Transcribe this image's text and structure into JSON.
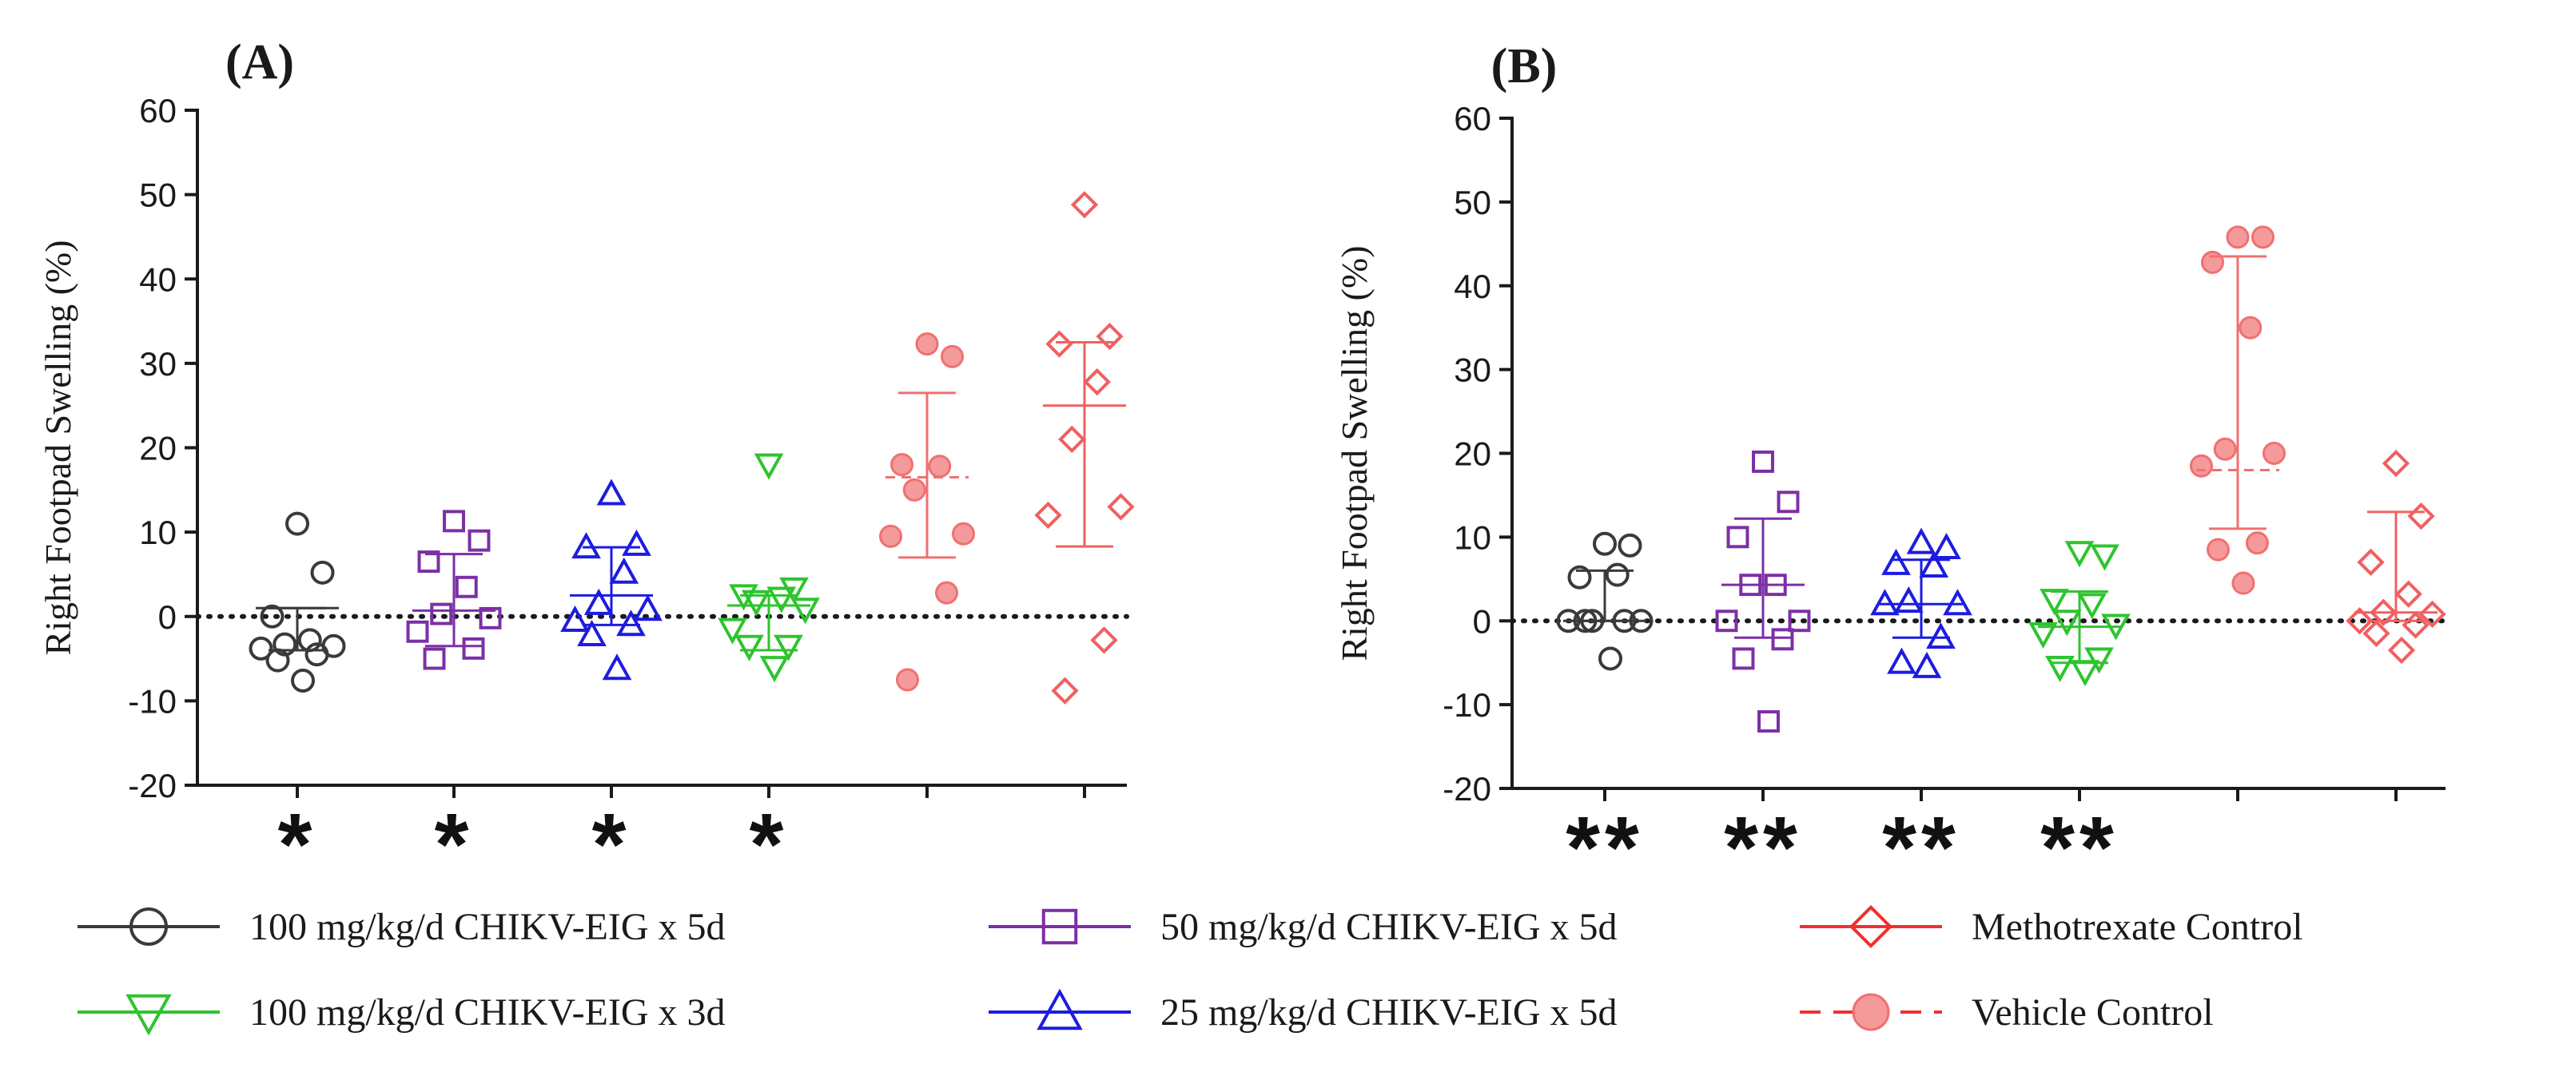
{
  "chart_data": [
    {
      "type": "scatter",
      "panel_label": "(A)",
      "ylabel": "Right Footpad Swelling (%)",
      "ylim": [
        -20,
        60
      ],
      "yticks": [
        -20,
        -10,
        0,
        10,
        20,
        30,
        40,
        50,
        60
      ],
      "reference_line": 0,
      "groups": [
        {
          "name": "100 mg/kg/d CHIKV-EIG x 5d",
          "marker": "circle",
          "color": "#3a3a3a",
          "significance": "*",
          "mean": 1,
          "err_low": -4,
          "err_high": 1,
          "mean_style": "solid",
          "values": [
            11,
            5.2,
            0,
            -2.8,
            -3.3,
            -3.5,
            -3.8,
            -4.5,
            -5.2,
            -7.6
          ]
        },
        {
          "name": "50 mg/kg/d CHIKV-EIG x 5d",
          "marker": "square",
          "color": "#7c2fa6",
          "significance": "*",
          "mean": 0.7,
          "err_low": -3.5,
          "err_high": 7.4,
          "mean_style": "solid",
          "values": [
            11.3,
            9,
            6.5,
            3.5,
            0.3,
            -0.2,
            -1.8,
            -3.8,
            -5
          ]
        },
        {
          "name": "25 mg/kg/d CHIKV-EIG x 5d",
          "marker": "triangle-up",
          "color": "#1c1ce0",
          "significance": "*",
          "mean": 2.5,
          "err_low": -1,
          "err_high": 8.2,
          "mean_style": "solid",
          "values": [
            14.5,
            8.5,
            8.2,
            5.2,
            1.5,
            0.8,
            -0.5,
            -1,
            -2.2,
            -6.2
          ]
        },
        {
          "name": "100 mg/kg/d CHIKV-EIG x 3d",
          "marker": "triangle-down",
          "color": "#2ec42e",
          "significance": "*",
          "mean": 1.3,
          "err_low": -4,
          "err_high": 2.5,
          "mean_style": "solid",
          "values": [
            18,
            3.3,
            2.5,
            2.2,
            1.8,
            0.9,
            -1.5,
            -3.5,
            -3.5,
            -6
          ]
        },
        {
          "name": "Vehicle Control",
          "marker": "filled-circle",
          "color": "#f07070",
          "significance": "",
          "mean": 16.5,
          "err_low": 7,
          "err_high": 26.5,
          "mean_style": "dashed",
          "values": [
            32.3,
            30.8,
            18,
            17.8,
            15,
            9.8,
            9.5,
            2.8,
            -7.5
          ]
        },
        {
          "name": "Methotrexate Control",
          "marker": "diamond",
          "color": "#f06060",
          "significance": "",
          "mean": 25,
          "err_low": 8.3,
          "err_high": 32.5,
          "mean_style": "solid",
          "values": [
            48.8,
            33.2,
            32.3,
            27.8,
            21,
            13,
            12,
            -2.8,
            -8.8
          ]
        }
      ]
    },
    {
      "type": "scatter",
      "panel_label": "(B)",
      "ylabel": "Right Footpad Swelling (%)",
      "ylim": [
        -20,
        60
      ],
      "yticks": [
        -20,
        -10,
        0,
        10,
        20,
        30,
        40,
        50,
        60
      ],
      "reference_line": 0,
      "groups": [
        {
          "name": "100 mg/kg/d CHIKV-EIG x 5d",
          "marker": "circle",
          "color": "#3a3a3a",
          "significance": "**",
          "mean": 0,
          "err_low": 0,
          "err_high": 6,
          "mean_style": "solid",
          "values": [
            9.2,
            9,
            5.2,
            5.5,
            0,
            0,
            0,
            0,
            0,
            -4.5
          ]
        },
        {
          "name": "50 mg/kg/d CHIKV-EIG x 5d",
          "marker": "square",
          "color": "#7c2fa6",
          "significance": "**",
          "mean": 4.3,
          "err_low": -2,
          "err_high": 12.2,
          "mean_style": "solid",
          "values": [
            19,
            14.2,
            10,
            4.3,
            4.3,
            0,
            0,
            -2.2,
            -4.5,
            -12
          ]
        },
        {
          "name": "25 mg/kg/d CHIKV-EIG x 5d",
          "marker": "triangle-up",
          "color": "#1c1ce0",
          "significance": "**",
          "mean": 2,
          "err_low": -2,
          "err_high": 7.3,
          "mean_style": "solid",
          "values": [
            9.3,
            8.7,
            6.8,
            6.5,
            2.3,
            2,
            2,
            -2,
            -5,
            -5.5
          ]
        },
        {
          "name": "100 mg/kg/d CHIKV-EIG x 3d",
          "marker": "triangle-down",
          "color": "#2ec42e",
          "significance": "**",
          "mean": -0.7,
          "err_low": -5,
          "err_high": 3.5,
          "mean_style": "solid",
          "values": [
            8.2,
            7.8,
            2.5,
            2,
            0,
            -0.5,
            -1.5,
            -4.5,
            -5.5,
            -6
          ]
        },
        {
          "name": "Vehicle Control",
          "marker": "filled-circle",
          "color": "#f07070",
          "significance": "",
          "mean": 18,
          "err_low": 11,
          "err_high": 43.5,
          "mean_style": "dashed",
          "values": [
            45.8,
            45.8,
            42.8,
            35,
            20.5,
            20,
            18.5,
            9.3,
            8.5,
            4.5
          ]
        },
        {
          "name": "Methotrexate Control",
          "marker": "diamond",
          "color": "#f06060",
          "significance": "",
          "mean": 1,
          "err_low": 0,
          "err_high": 13,
          "mean_style": "solid",
          "values": [
            18.8,
            12.5,
            7,
            3.2,
            1,
            0.8,
            0,
            -0.5,
            -1.5,
            -3.5
          ]
        }
      ]
    }
  ],
  "legend": {
    "items": [
      {
        "label": "100 mg/kg/d CHIKV-EIG x 5d",
        "marker": "circle",
        "color": "#3a3a3a",
        "line": "solid"
      },
      {
        "label": "50 mg/kg/d CHIKV-EIG x 5d",
        "marker": "square",
        "color": "#7c2fa6",
        "line": "solid"
      },
      {
        "label": "Methotrexate Control",
        "marker": "diamond",
        "color": "#f03030",
        "line": "solid"
      },
      {
        "label": "100 mg/kg/d CHIKV-EIG x 3d",
        "marker": "triangle-down",
        "color": "#2ec42e",
        "line": "solid"
      },
      {
        "label": "25 mg/kg/d CHIKV-EIG x 5d",
        "marker": "triangle-up",
        "color": "#1c1ce0",
        "line": "solid"
      },
      {
        "label": "Vehicle Control",
        "marker": "filled-circle",
        "color": "#f03030",
        "line": "dashed"
      }
    ]
  }
}
